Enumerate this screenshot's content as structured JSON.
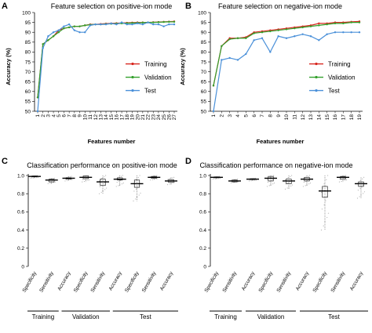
{
  "chart_data": [
    {
      "panel": "A",
      "type": "line",
      "title": "Feature selection on positive-ion mode",
      "xlabel": "Features number",
      "ylabel": "Accuracy (%)",
      "ylim": [
        50,
        100
      ],
      "yticks": [
        50,
        55,
        60,
        65,
        70,
        75,
        80,
        85,
        90,
        95,
        100
      ],
      "x": [
        1,
        2,
        3,
        4,
        5,
        6,
        7,
        8,
        9,
        10,
        11,
        12,
        13,
        14,
        15,
        16,
        17,
        18,
        19,
        20,
        21,
        22,
        23,
        24,
        25,
        26,
        27
      ],
      "legend_position": "center-right",
      "series": [
        {
          "name": "Training",
          "color": "#d7261e",
          "values": [
            57,
            84,
            86,
            88,
            91,
            92,
            92.5,
            93,
            93,
            93.5,
            94,
            94,
            94.2,
            94.4,
            94.5,
            94.6,
            94.7,
            94.8,
            94.9,
            95,
            95,
            95,
            95.1,
            95.2,
            95.3,
            95.4,
            95.5
          ]
        },
        {
          "name": "Validation",
          "color": "#33a02c",
          "values": [
            57,
            84,
            86,
            88,
            90,
            92,
            92.5,
            93,
            93,
            93.5,
            93.8,
            94,
            94,
            94.2,
            94.3,
            94.4,
            94.5,
            94.6,
            94.7,
            94.8,
            94.9,
            95,
            95,
            95.1,
            95.2,
            95.3,
            95.3
          ]
        },
        {
          "name": "Test",
          "color": "#4a90d9",
          "values": [
            50,
            82,
            88,
            90,
            91,
            93,
            94,
            91,
            90,
            90,
            93.5,
            94,
            94,
            94,
            94.5,
            94,
            95,
            94,
            94,
            94.5,
            94,
            95,
            94,
            94,
            93,
            94,
            94
          ]
        }
      ]
    },
    {
      "panel": "B",
      "type": "line",
      "title": "Feature selection on negative-ion mode",
      "xlabel": "Features number",
      "ylabel": "Accuracy (%)",
      "ylim": [
        50,
        100
      ],
      "yticks": [
        50,
        55,
        60,
        65,
        70,
        75,
        80,
        85,
        90,
        95,
        100
      ],
      "x": [
        1,
        2,
        3,
        4,
        5,
        6,
        7,
        8,
        9,
        10,
        11,
        12,
        13,
        14,
        15,
        16,
        17,
        18,
        19
      ],
      "legend_position": "center-right",
      "series": [
        {
          "name": "Training",
          "color": "#d7261e",
          "values": [
            63,
            83,
            87,
            87,
            87.5,
            90,
            90.5,
            91,
            91.5,
            92,
            92.5,
            93,
            93.5,
            94.5,
            94.5,
            95,
            95,
            95.3,
            95.5
          ]
        },
        {
          "name": "Validation",
          "color": "#33a02c",
          "values": [
            63,
            83,
            86.5,
            87,
            87,
            89.5,
            90,
            90.5,
            91,
            91.5,
            92,
            92.5,
            93,
            93.5,
            94,
            94.5,
            94.5,
            95,
            95
          ]
        },
        {
          "name": "Test",
          "color": "#4a90d9",
          "values": [
            50,
            76,
            77,
            76,
            79,
            86,
            87,
            80,
            88,
            87,
            88,
            89,
            88,
            86,
            89,
            90,
            90,
            90,
            90
          ]
        }
      ]
    },
    {
      "panel": "C",
      "type": "box",
      "title": "Classification performance on positive-ion mode",
      "ylim": [
        0,
        1.0
      ],
      "yticks": [
        "0",
        "0.2",
        "0.4",
        "0.6",
        "0.8",
        "1.0"
      ],
      "categories": [
        "Specificity",
        "Sensitivity",
        "Accuracy",
        "Specificity",
        "Sensitivity",
        "Accuracy",
        "Specificity",
        "Sensitivity",
        "Accuracy"
      ],
      "groups": [
        {
          "label": "Training",
          "span": [
            0,
            1
          ]
        },
        {
          "label": "Validation",
          "span": [
            2,
            4
          ]
        },
        {
          "label": "Test",
          "span": [
            5,
            8
          ]
        }
      ],
      "values": [
        0.99,
        0.95,
        0.97,
        0.98,
        0.93,
        0.96,
        0.91,
        0.98,
        0.94
      ],
      "q1": [
        0.985,
        0.93,
        0.96,
        0.965,
        0.89,
        0.95,
        0.87,
        0.97,
        0.925
      ],
      "q3": [
        0.995,
        0.96,
        0.975,
        0.995,
        0.96,
        0.975,
        0.95,
        0.99,
        0.955
      ],
      "min": [
        0.97,
        0.91,
        0.94,
        0.93,
        0.8,
        0.88,
        0.72,
        0.95,
        0.9
      ],
      "max": [
        1.0,
        0.97,
        0.99,
        1.0,
        1.0,
        1.0,
        1.0,
        1.0,
        0.98
      ]
    },
    {
      "panel": "D",
      "type": "box",
      "title": "Classification performance on negative-ion mode",
      "ylim": [
        0,
        1.0
      ],
      "yticks": [
        "0",
        "0.2",
        "0.4",
        "0.6",
        "0.8",
        "1.0"
      ],
      "categories": [
        "Specificity",
        "Sensitivity",
        "Accuracy",
        "Specificity",
        "Sensitivity",
        "Accuracy",
        "Specificity",
        "Sensitivity",
        "Accuracy"
      ],
      "groups": [
        {
          "label": "Training",
          "span": [
            0,
            1
          ]
        },
        {
          "label": "Validation",
          "span": [
            2,
            4
          ]
        },
        {
          "label": "Test",
          "span": [
            5,
            8
          ]
        }
      ],
      "values": [
        0.98,
        0.94,
        0.96,
        0.97,
        0.94,
        0.96,
        0.83,
        0.98,
        0.91
      ],
      "q1": [
        0.975,
        0.93,
        0.955,
        0.94,
        0.91,
        0.94,
        0.76,
        0.96,
        0.88
      ],
      "q3": [
        0.985,
        0.95,
        0.965,
        0.99,
        0.96,
        0.98,
        0.88,
        0.99,
        0.93
      ],
      "min": [
        0.96,
        0.92,
        0.94,
        0.88,
        0.85,
        0.88,
        0.4,
        0.93,
        0.75
      ],
      "max": [
        0.99,
        0.96,
        0.97,
        1.0,
        1.0,
        1.0,
        1.0,
        1.0,
        0.98
      ]
    }
  ]
}
